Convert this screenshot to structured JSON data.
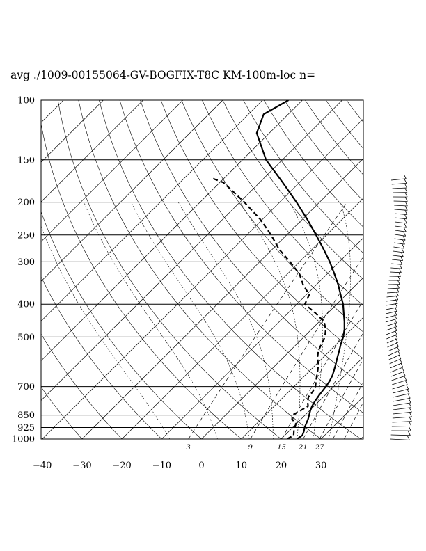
{
  "chart_data": {
    "type": "line",
    "title": "avg ./1009-00155064-GV-BOGFIX-T8C KM-100m-loc n=",
    "pressure_ticks": [
      {
        "p": 100,
        "label": "100"
      },
      {
        "p": 150,
        "label": "150"
      },
      {
        "p": 200,
        "label": "200"
      },
      {
        "p": 250,
        "label": "250"
      },
      {
        "p": 300,
        "label": "300"
      },
      {
        "p": 400,
        "label": "400"
      },
      {
        "p": 500,
        "label": "500"
      },
      {
        "p": 700,
        "label": "700"
      },
      {
        "p": 850,
        "label": "850"
      },
      {
        "p": 925,
        "label": "925"
      },
      {
        "p": 1000,
        "label": "1000"
      }
    ],
    "temperature_ticks": [
      {
        "t": -40,
        "label": "−40"
      },
      {
        "t": -30,
        "label": "−30"
      },
      {
        "t": -20,
        "label": "−20"
      },
      {
        "t": -10,
        "label": "−10"
      },
      {
        "t": 0,
        "label": "0"
      },
      {
        "t": 10,
        "label": "10"
      },
      {
        "t": 20,
        "label": "20"
      },
      {
        "t": 30,
        "label": "30"
      }
    ],
    "mixing_ratio_labels": [
      "3",
      "9",
      "15",
      "21",
      "27"
    ],
    "ylim": [
      1000,
      100
    ],
    "xlim": [
      -40,
      40
    ],
    "series": [
      {
        "style": "solid",
        "pressure": [
          1000,
          975,
          950,
          925,
          900,
          875,
          850,
          825,
          800,
          775,
          750,
          725,
          700,
          675,
          650,
          625,
          600,
          575,
          550,
          525,
          500,
          475,
          450,
          425,
          400,
          375,
          350,
          325,
          300,
          275,
          250,
          225,
          200,
          175,
          150,
          125,
          110,
          100
        ],
        "values": [
          24,
          24.4,
          23.8,
          23,
          22.4,
          21.8,
          21,
          20.2,
          19.5,
          19.0,
          18.6,
          18.3,
          18.0,
          17.6,
          16.9,
          15.9,
          14.8,
          13.6,
          12.4,
          11.1,
          9.9,
          8.3,
          6.3,
          4.0,
          1.6,
          -1.4,
          -4.6,
          -8.3,
          -12.4,
          -17.2,
          -22.6,
          -28.7,
          -35.8,
          -44.2,
          -54.1,
          -63.2,
          -66.2,
          -63.5
        ]
      },
      {
        "style": "dashed",
        "pressure": [
          1000,
          975,
          950,
          925,
          900,
          875,
          850,
          825,
          800,
          775,
          750,
          725,
          700,
          675,
          650,
          625,
          600,
          575,
          550,
          525,
          500,
          475,
          450,
          425,
          400,
          375,
          350,
          325,
          300,
          275,
          250,
          225,
          200,
          175,
          170
        ],
        "values": [
          21.5,
          22.2,
          21.3,
          20.6,
          19.8,
          17.8,
          16.8,
          17.7,
          18.5,
          17.2,
          16.2,
          16.0,
          15.4,
          14.2,
          13.0,
          11.8,
          10.4,
          8.6,
          7.2,
          6.2,
          5.3,
          3.6,
          1.2,
          -3.1,
          -8.0,
          -9.3,
          -13.4,
          -17.1,
          -22.4,
          -28.4,
          -33.9,
          -40.5,
          -48.9,
          -59.1,
          -63.0
        ]
      }
    ]
  }
}
